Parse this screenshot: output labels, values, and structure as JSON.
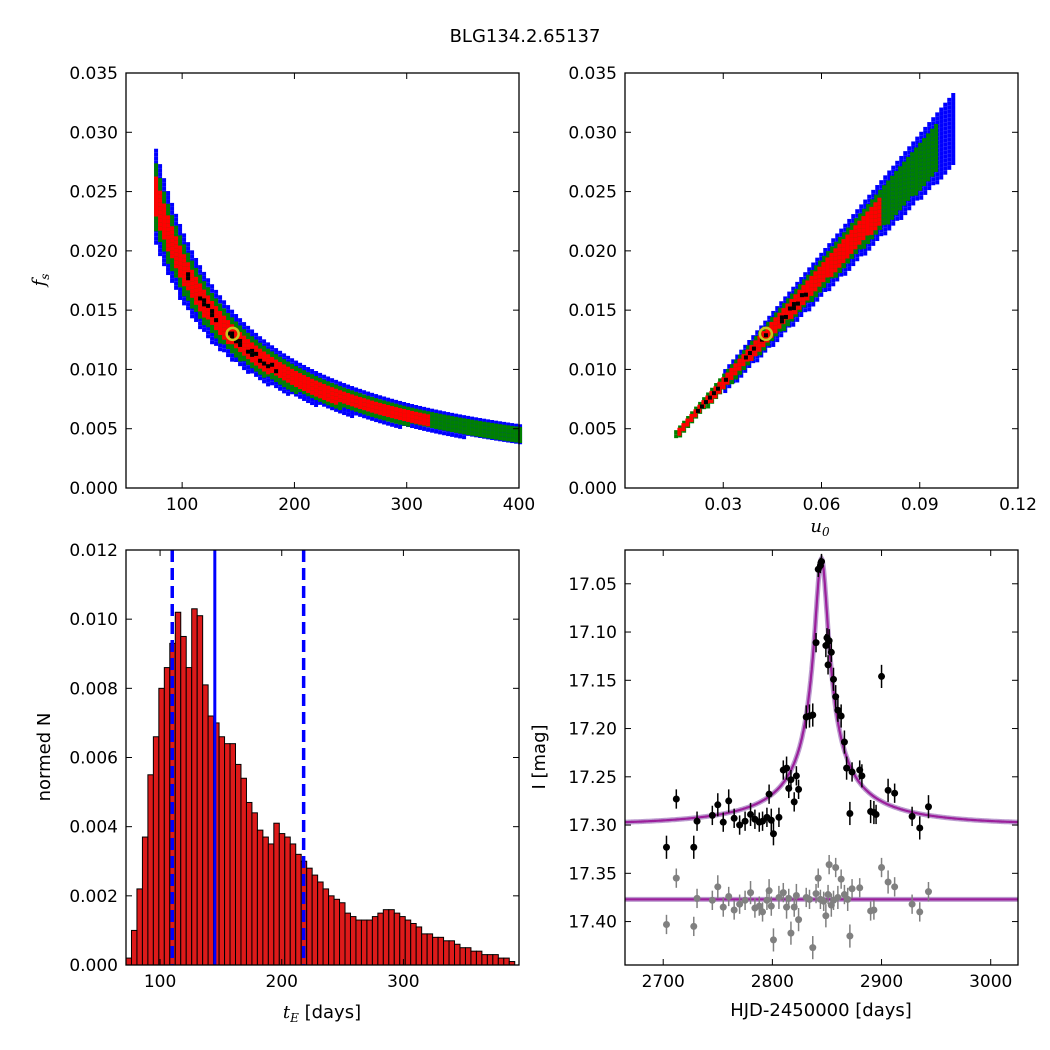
{
  "figure": {
    "title": "BLG134.2.65137"
  },
  "colors": {
    "blue": "#0000ff",
    "green": "#008000",
    "red": "#ff0000",
    "black": "#000000",
    "bar_fill": "#dd1a1a",
    "model_line": "#9b1f9b",
    "model_line_2": "#7a3aa0",
    "grey_points": "#808080",
    "best_marker": "#c8c820"
  },
  "chart_data": [
    {
      "type": "heatmap",
      "panel": "top-left",
      "title": "",
      "xlabel": "",
      "ylabel": "f_s",
      "xlim": [
        50,
        400
      ],
      "ylim": [
        0.0,
        0.035
      ],
      "xticks": [
        "100",
        "200",
        "300",
        "400"
      ],
      "yticks": [
        "0.000",
        "0.005",
        "0.010",
        "0.015",
        "0.020",
        "0.025",
        "0.030",
        "0.035"
      ],
      "relation": "f_s = 1.85 / t_E",
      "x_range": [
        75,
        400
      ],
      "confidence_levels": [
        "blue",
        "green",
        "red",
        "black"
      ],
      "best_fit": {
        "x": 145,
        "y": 0.013
      }
    },
    {
      "type": "heatmap",
      "panel": "top-right",
      "title": "",
      "xlabel": "u_0",
      "ylabel": "",
      "xlim": [
        0.0,
        0.12
      ],
      "ylim": [
        0.0,
        0.035
      ],
      "xticks": [
        "0.03",
        "0.06",
        "0.09",
        "0.12"
      ],
      "yticks": [
        "0.000",
        "0.005",
        "0.010",
        "0.015",
        "0.020",
        "0.025",
        "0.030",
        "0.035"
      ],
      "relation": "f_s = 0.304 * u_0",
      "x_range": [
        0.015,
        0.1
      ],
      "confidence_levels": [
        "blue",
        "green",
        "red",
        "black"
      ],
      "best_fit": {
        "x": 0.043,
        "y": 0.013
      }
    },
    {
      "type": "bar",
      "panel": "bottom-left",
      "title": "",
      "xlabel": "t_E [days]",
      "ylabel": "normed N",
      "xlim": [
        72,
        395
      ],
      "ylim": [
        0.0,
        0.012
      ],
      "xticks": [
        "100",
        "200",
        "300"
      ],
      "yticks": [
        "0.000",
        "0.002",
        "0.004",
        "0.006",
        "0.008",
        "0.010",
        "0.012"
      ],
      "bin_start": 72,
      "bin_width": 4.5,
      "values": [
        0.0002,
        0.001,
        0.0022,
        0.0037,
        0.0055,
        0.0066,
        0.008,
        0.0086,
        0.0093,
        0.0102,
        0.0095,
        0.0086,
        0.0103,
        0.0101,
        0.0081,
        0.0072,
        0.007,
        0.0066,
        0.0064,
        0.0064,
        0.0058,
        0.0054,
        0.0047,
        0.0044,
        0.0039,
        0.0037,
        0.0035,
        0.0041,
        0.0038,
        0.0037,
        0.0035,
        0.0032,
        0.003,
        0.0028,
        0.0026,
        0.0024,
        0.0022,
        0.002,
        0.0019,
        0.0018,
        0.0015,
        0.0014,
        0.0013,
        0.0013,
        0.0013,
        0.0014,
        0.0015,
        0.0016,
        0.0016,
        0.0015,
        0.0014,
        0.0013,
        0.0012,
        0.0011,
        0.0009,
        0.0009,
        0.0008,
        0.0008,
        0.0007,
        0.0007,
        0.0006,
        0.0005,
        0.0005,
        0.0004,
        0.0004,
        0.0003,
        0.0003,
        0.0003,
        0.0002,
        0.0002,
        0.0001,
        0.0001
      ],
      "median": 145,
      "interval": [
        110,
        218
      ]
    },
    {
      "type": "scatter",
      "panel": "bottom-right",
      "title": "",
      "xlabel": "HJD-2450000 [days]",
      "ylabel": "I [mag]",
      "xlim": [
        2665,
        3025
      ],
      "ylim": [
        17.445,
        17.015
      ],
      "xticks": [
        "2700",
        "2800",
        "2900",
        "3000"
      ],
      "yticks": [
        "17.05",
        "17.10",
        "17.15",
        "17.20",
        "17.25",
        "17.30",
        "17.35",
        "17.40"
      ],
      "model": {
        "t0": 2845,
        "u0": 0.043,
        "tE": 145,
        "fs": 0.013,
        "base": 17.3
      },
      "residual_baseline": 17.377,
      "points": [
        [
          2703,
          17.323,
          0.012
        ],
        [
          2712,
          17.273,
          0.01
        ],
        [
          2728,
          17.323,
          0.012
        ],
        [
          2731,
          17.296,
          0.01
        ],
        [
          2745,
          17.29,
          0.01
        ],
        [
          2750,
          17.279,
          0.012
        ],
        [
          2755,
          17.297,
          0.01
        ],
        [
          2760,
          17.275,
          0.012
        ],
        [
          2765,
          17.293,
          0.01
        ],
        [
          2770,
          17.3,
          0.01
        ],
        [
          2775,
          17.296,
          0.01
        ],
        [
          2780,
          17.289,
          0.012
        ],
        [
          2784,
          17.294,
          0.01
        ],
        [
          2788,
          17.297,
          0.01
        ],
        [
          2791,
          17.296,
          0.01
        ],
        [
          2795,
          17.292,
          0.01
        ],
        [
          2797,
          17.268,
          0.01
        ],
        [
          2799,
          17.295,
          0.012
        ],
        [
          2801,
          17.309,
          0.012
        ],
        [
          2806,
          17.292,
          0.01
        ],
        [
          2810,
          17.243,
          0.01
        ],
        [
          2813,
          17.241,
          0.012
        ],
        [
          2815,
          17.262,
          0.01
        ],
        [
          2817,
          17.253,
          0.01
        ],
        [
          2820,
          17.276,
          0.01
        ],
        [
          2822,
          17.249,
          0.01
        ],
        [
          2824,
          17.263,
          0.01
        ],
        [
          2831,
          17.188,
          0.012
        ],
        [
          2834,
          17.187,
          0.012
        ],
        [
          2837,
          17.186,
          0.012
        ],
        [
          2840,
          17.111,
          0.01
        ],
        [
          2842,
          17.035,
          0.008
        ],
        [
          2844,
          17.031,
          0.008
        ],
        [
          2845,
          17.027,
          0.008
        ],
        [
          2849,
          17.114,
          0.012
        ],
        [
          2850,
          17.106,
          0.01
        ],
        [
          2851,
          17.134,
          0.01
        ],
        [
          2852,
          17.109,
          0.012
        ],
        [
          2854,
          17.121,
          0.01
        ],
        [
          2856,
          17.149,
          0.012
        ],
        [
          2858,
          17.167,
          0.012
        ],
        [
          2860,
          17.181,
          0.012
        ],
        [
          2863,
          17.187,
          0.012
        ],
        [
          2866,
          17.214,
          0.012
        ],
        [
          2868,
          17.241,
          0.012
        ],
        [
          2871,
          17.288,
          0.012
        ],
        [
          2873,
          17.245,
          0.01
        ],
        [
          2880,
          17.243,
          0.01
        ],
        [
          2882,
          17.249,
          0.012
        ],
        [
          2890,
          17.286,
          0.012
        ],
        [
          2893,
          17.287,
          0.012
        ],
        [
          2900,
          17.146,
          0.012
        ],
        [
          2906,
          17.264,
          0.012
        ],
        [
          2912,
          17.267,
          0.01
        ],
        [
          2928,
          17.291,
          0.01
        ],
        [
          2935,
          17.303,
          0.012
        ],
        [
          2943,
          17.281,
          0.012
        ],
        [
          2895,
          17.289,
          0.01
        ]
      ],
      "residual_points": [
        [
          2703,
          17.403,
          0.01
        ],
        [
          2712,
          17.355,
          0.01
        ],
        [
          2728,
          17.405,
          0.01
        ],
        [
          2731,
          17.376,
          0.01
        ],
        [
          2745,
          17.378,
          0.01
        ],
        [
          2750,
          17.364,
          0.012
        ],
        [
          2755,
          17.385,
          0.01
        ],
        [
          2760,
          17.374,
          0.01
        ],
        [
          2765,
          17.388,
          0.01
        ],
        [
          2770,
          17.382,
          0.01
        ],
        [
          2775,
          17.378,
          0.01
        ],
        [
          2780,
          17.37,
          0.012
        ],
        [
          2784,
          17.386,
          0.01
        ],
        [
          2788,
          17.384,
          0.01
        ],
        [
          2791,
          17.39,
          0.01
        ],
        [
          2795,
          17.378,
          0.01
        ],
        [
          2797,
          17.368,
          0.012
        ],
        [
          2799,
          17.384,
          0.01
        ],
        [
          2801,
          17.419,
          0.012
        ],
        [
          2806,
          17.375,
          0.012
        ],
        [
          2810,
          17.37,
          0.01
        ],
        [
          2813,
          17.385,
          0.012
        ],
        [
          2815,
          17.376,
          0.01
        ],
        [
          2817,
          17.412,
          0.012
        ],
        [
          2820,
          17.385,
          0.01
        ],
        [
          2822,
          17.373,
          0.012
        ],
        [
          2824,
          17.398,
          0.012
        ],
        [
          2831,
          17.375,
          0.01
        ],
        [
          2834,
          17.377,
          0.01
        ],
        [
          2837,
          17.427,
          0.012
        ],
        [
          2840,
          17.371,
          0.01
        ],
        [
          2842,
          17.355,
          0.01
        ],
        [
          2844,
          17.377,
          0.01
        ],
        [
          2847,
          17.379,
          0.01
        ],
        [
          2849,
          17.394,
          0.012
        ],
        [
          2851,
          17.372,
          0.01
        ],
        [
          2852,
          17.341,
          0.01
        ],
        [
          2854,
          17.383,
          0.012
        ],
        [
          2856,
          17.378,
          0.01
        ],
        [
          2858,
          17.344,
          0.01
        ],
        [
          2860,
          17.375,
          0.012
        ],
        [
          2863,
          17.356,
          0.01
        ],
        [
          2866,
          17.372,
          0.01
        ],
        [
          2869,
          17.377,
          0.012
        ],
        [
          2871,
          17.415,
          0.012
        ],
        [
          2873,
          17.366,
          0.01
        ],
        [
          2880,
          17.365,
          0.01
        ],
        [
          2890,
          17.389,
          0.01
        ],
        [
          2893,
          17.388,
          0.01
        ],
        [
          2900,
          17.344,
          0.01
        ],
        [
          2906,
          17.359,
          0.012
        ],
        [
          2912,
          17.364,
          0.01
        ],
        [
          2928,
          17.382,
          0.01
        ],
        [
          2935,
          17.39,
          0.01
        ],
        [
          2943,
          17.369,
          0.01
        ]
      ]
    }
  ]
}
